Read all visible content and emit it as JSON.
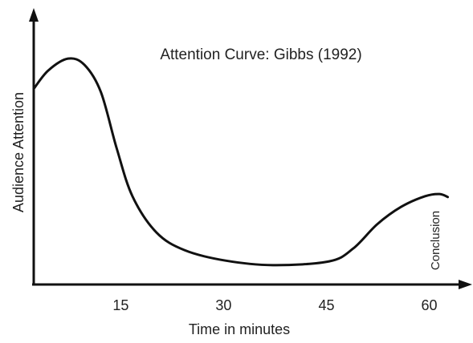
{
  "chart_data": {
    "type": "line",
    "title": "Attention Curve: Gibbs (1992)",
    "x_label": "Time in minutes",
    "y_label": "Audience Attention",
    "annotation": "Conclusion",
    "x": [
      2.3,
      4.4,
      7.3,
      9.7,
      12.1,
      14.4,
      16.7,
      20.2,
      24.3,
      30.2,
      37.2,
      45.4,
      48.9,
      52.4,
      55.9,
      59.4,
      61.5,
      62.7
    ],
    "values": [
      71.8,
      78.5,
      82.9,
      80.6,
      70.6,
      50,
      32.4,
      19.1,
      12.6,
      8.8,
      7.1,
      8.5,
      13.2,
      22.1,
      28.5,
      32.4,
      33.2,
      32.1
    ],
    "color": "#111111",
    "xlim": [
      2.3,
      66.5
    ],
    "xticks": [
      15,
      30,
      45,
      60
    ],
    "ylim": [
      0,
      100
    ]
  }
}
